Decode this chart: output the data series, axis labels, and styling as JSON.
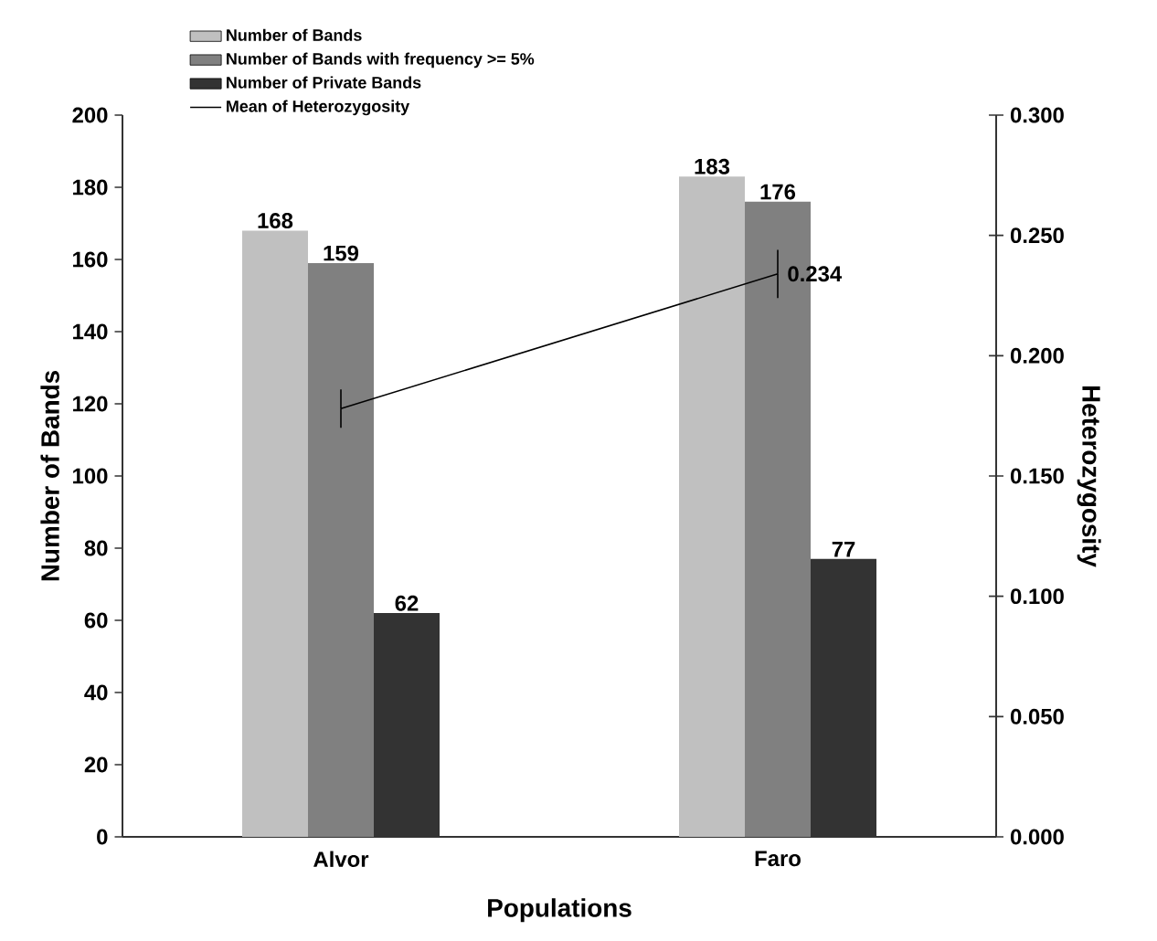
{
  "chart_data": {
    "type": "bar",
    "categories": [
      "Alvor",
      "Faro"
    ],
    "xlabel": "Populations",
    "ylabel": "Number of Bands",
    "y2label": "Heterozygosity",
    "ylim": [
      0,
      200
    ],
    "yticks": [
      0,
      20,
      40,
      60,
      80,
      100,
      120,
      140,
      160,
      180,
      200
    ],
    "y2lim": [
      0,
      0.3
    ],
    "y2ticks": [
      {
        "value": 0,
        "label": "0.000"
      },
      {
        "value": 0.05,
        "label": "0.050"
      },
      {
        "value": 0.1,
        "label": "0.100"
      },
      {
        "value": 0.15,
        "label": "0.150"
      },
      {
        "value": 0.2,
        "label": "0.200"
      },
      {
        "value": 0.25,
        "label": "0.250"
      },
      {
        "value": 0.3,
        "label": "0.300"
      }
    ],
    "data_labels": true,
    "legend": "top left",
    "series": [
      {
        "name": "Number of Bands",
        "color": "#c0c0c0",
        "values": [
          168,
          183
        ]
      },
      {
        "name": "Number of Bands with frequency >= 5%",
        "color": "#808080",
        "values": [
          159,
          176
        ]
      },
      {
        "name": "Number of Private Bands",
        "color": "#333333",
        "values": [
          62,
          77
        ]
      },
      {
        "name": "Mean of Heterozygosity",
        "type": "line",
        "axis": "y2",
        "color": "#000000",
        "values": [
          0.178,
          0.234
        ],
        "errors": [
          0.008,
          0.01
        ],
        "value_labels": [
          null,
          "0.234"
        ]
      }
    ]
  }
}
